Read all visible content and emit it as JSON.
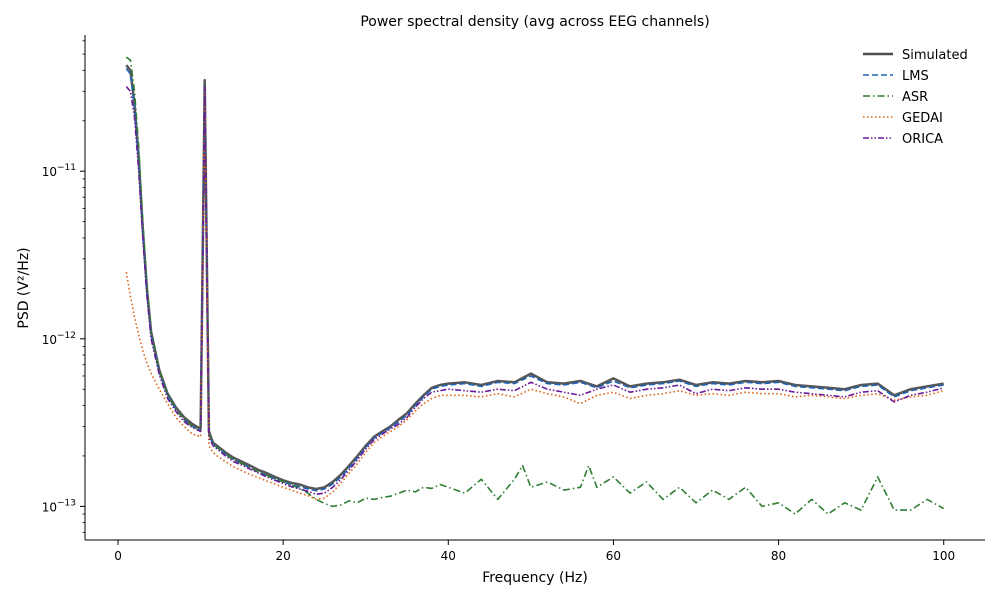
{
  "chart_data": {
    "type": "line",
    "title": "Power spectral density (avg across EEG channels)",
    "xlabel": "Frequency (Hz)",
    "ylabel": "PSD  (V²/Hz)",
    "xlim": [
      -4,
      105
    ],
    "ylim": [
      6.3e-14,
      6.5e-11
    ],
    "yscale": "log",
    "xticks": [
      0,
      20,
      40,
      60,
      80,
      100
    ],
    "xtick_labels": [
      "0",
      "20",
      "40",
      "60",
      "80",
      "100"
    ],
    "yticks": [
      1e-13,
      1e-12,
      1e-11
    ],
    "ytick_labels": [
      {
        "base": "10",
        "exp": "−13"
      },
      {
        "base": "10",
        "exp": "−12"
      },
      {
        "base": "10",
        "exp": "−11"
      }
    ],
    "grid": false,
    "legend_position": "top-right",
    "series": [
      {
        "name": "Simulated",
        "color": "#4d4d4d",
        "style": "solid",
        "x": [
          1,
          1.5,
          2,
          2.5,
          3,
          3.5,
          4,
          5,
          6,
          7,
          8,
          9,
          10,
          10.3,
          10.5,
          10.7,
          11,
          11.5,
          12,
          13,
          14,
          15,
          16,
          17,
          18,
          19,
          20,
          21,
          22,
          23,
          24,
          25,
          26,
          27,
          28,
          29,
          30,
          31,
          32,
          33,
          34,
          35,
          36,
          37,
          38,
          39,
          40,
          42,
          44,
          46,
          48,
          50,
          52,
          54,
          56,
          58,
          60,
          62,
          64,
          66,
          68,
          70,
          72,
          74,
          76,
          78,
          80,
          82,
          84,
          86,
          88,
          90,
          92,
          94,
          96,
          98,
          100
        ],
        "y": [
          4.3e-11,
          4e-11,
          2.5e-11,
          1.2e-11,
          4.5e-12,
          2e-12,
          1.1e-12,
          6.5e-13,
          4.7e-13,
          3.9e-13,
          3.4e-13,
          3.1e-13,
          2.9e-13,
          5e-12,
          3.5e-11,
          5e-12,
          2.8e-13,
          2.4e-13,
          2.3e-13,
          2.1e-13,
          1.95e-13,
          1.85e-13,
          1.75e-13,
          1.65e-13,
          1.58e-13,
          1.5e-13,
          1.43e-13,
          1.38e-13,
          1.35e-13,
          1.3e-13,
          1.27e-13,
          1.3e-13,
          1.4e-13,
          1.55e-13,
          1.75e-13,
          2e-13,
          2.3e-13,
          2.6e-13,
          2.8e-13,
          3e-13,
          3.3e-13,
          3.6e-13,
          4.1e-13,
          4.6e-13,
          5.1e-13,
          5.3e-13,
          5.4e-13,
          5.5e-13,
          5.3e-13,
          5.6e-13,
          5.5e-13,
          6.2e-13,
          5.5e-13,
          5.4e-13,
          5.6e-13,
          5.2e-13,
          5.8e-13,
          5.2e-13,
          5.4e-13,
          5.5e-13,
          5.7e-13,
          5.3e-13,
          5.5e-13,
          5.4e-13,
          5.6e-13,
          5.5e-13,
          5.6e-13,
          5.3e-13,
          5.2e-13,
          5.1e-13,
          5e-13,
          5.3e-13,
          5.4e-13,
          4.6e-13,
          5e-13,
          5.2e-13,
          5.4e-13
        ]
      },
      {
        "name": "LMS",
        "color": "#1f63b5",
        "style": "dashed",
        "x": [
          1,
          1.5,
          2,
          2.5,
          3,
          3.5,
          4,
          5,
          6,
          7,
          8,
          9,
          10,
          10.3,
          10.5,
          10.7,
          11,
          11.5,
          12,
          13,
          14,
          15,
          16,
          17,
          18,
          19,
          20,
          21,
          22,
          23,
          24,
          25,
          26,
          27,
          28,
          29,
          30,
          31,
          32,
          33,
          34,
          35,
          36,
          37,
          38,
          39,
          40,
          42,
          44,
          46,
          48,
          50,
          52,
          54,
          56,
          58,
          60,
          62,
          64,
          66,
          68,
          70,
          72,
          74,
          76,
          78,
          80,
          82,
          84,
          86,
          88,
          90,
          92,
          94,
          96,
          98,
          100
        ],
        "y": [
          4.1e-11,
          3.8e-11,
          2.4e-11,
          1.15e-11,
          4.3e-12,
          1.9e-12,
          1.05e-12,
          6.3e-13,
          4.6e-13,
          3.8e-13,
          3.3e-13,
          3e-13,
          2.85e-13,
          4.8e-12,
          3.3e-11,
          4.8e-12,
          2.7e-13,
          2.35e-13,
          2.25e-13,
          2.05e-13,
          1.9e-13,
          1.8e-13,
          1.7e-13,
          1.6e-13,
          1.53e-13,
          1.46e-13,
          1.4e-13,
          1.35e-13,
          1.31e-13,
          1.27e-13,
          1.24e-13,
          1.27e-13,
          1.36e-13,
          1.5e-13,
          1.7e-13,
          1.95e-13,
          2.25e-13,
          2.55e-13,
          2.75e-13,
          2.95e-13,
          3.2e-13,
          3.5e-13,
          4e-13,
          4.5e-13,
          5e-13,
          5.2e-13,
          5.3e-13,
          5.4e-13,
          5.2e-13,
          5.5e-13,
          5.4e-13,
          6e-13,
          5.4e-13,
          5.3e-13,
          5.5e-13,
          5.1e-13,
          5.6e-13,
          5.1e-13,
          5.3e-13,
          5.4e-13,
          5.6e-13,
          5.2e-13,
          5.4e-13,
          5.3e-13,
          5.5e-13,
          5.4e-13,
          5.5e-13,
          5.2e-13,
          5.1e-13,
          5e-13,
          4.9e-13,
          5.2e-13,
          5.3e-13,
          4.5e-13,
          4.9e-13,
          5.1e-13,
          5.3e-13
        ]
      },
      {
        "name": "ASR",
        "color": "#2e7d32",
        "style": "dashdot",
        "x": [
          1,
          1.5,
          2,
          2.5,
          3,
          3.5,
          4,
          5,
          6,
          7,
          8,
          9,
          10,
          10.3,
          10.5,
          10.7,
          11,
          11.5,
          12,
          13,
          14,
          15,
          16,
          17,
          18,
          19,
          20,
          21,
          22,
          23,
          24,
          25,
          26,
          27,
          28,
          29,
          30,
          31,
          32,
          33,
          34,
          35,
          36,
          37,
          38,
          39,
          40,
          42,
          44,
          46,
          48,
          49,
          50,
          52,
          54,
          56,
          57,
          58,
          60,
          62,
          64,
          66,
          68,
          70,
          72,
          74,
          76,
          78,
          80,
          82,
          84,
          86,
          88,
          90,
          92,
          94,
          96,
          98,
          100
        ],
        "y": [
          4.8e-11,
          4.6e-11,
          3e-11,
          1.4e-11,
          5e-12,
          2.1e-12,
          1.1e-12,
          6.4e-13,
          4.6e-13,
          3.8e-13,
          3.3e-13,
          3e-13,
          2.85e-13,
          4.8e-12,
          3.3e-11,
          4.8e-12,
          2.7e-13,
          2.35e-13,
          2.25e-13,
          2.05e-13,
          1.9e-13,
          1.8e-13,
          1.7e-13,
          1.6e-13,
          1.53e-13,
          1.46e-13,
          1.4e-13,
          1.34e-13,
          1.28e-13,
          1.2e-13,
          1.1e-13,
          1.04e-13,
          1e-13,
          1.02e-13,
          1.08e-13,
          1.05e-13,
          1.12e-13,
          1.1e-13,
          1.13e-13,
          1.15e-13,
          1.2e-13,
          1.25e-13,
          1.22e-13,
          1.3e-13,
          1.28e-13,
          1.35e-13,
          1.3e-13,
          1.2e-13,
          1.45e-13,
          1.1e-13,
          1.45e-13,
          1.75e-13,
          1.3e-13,
          1.4e-13,
          1.25e-13,
          1.3e-13,
          1.75e-13,
          1.3e-13,
          1.5e-13,
          1.2e-13,
          1.4e-13,
          1.1e-13,
          1.3e-13,
          1.05e-13,
          1.25e-13,
          1.1e-13,
          1.3e-13,
          1e-13,
          1.05e-13,
          9e-14,
          1.1e-13,
          9e-14,
          1.05e-13,
          9.5e-14,
          1.5e-13,
          9.5e-14,
          9.5e-14,
          1.1e-13,
          9.7e-14
        ]
      },
      {
        "name": "GEDAI",
        "color": "#e06010",
        "style": "dotted",
        "x": [
          1,
          1.5,
          2,
          2.5,
          3,
          3.5,
          4,
          5,
          6,
          7,
          8,
          9,
          10,
          10.3,
          10.5,
          10.7,
          11,
          11.5,
          12,
          13,
          14,
          15,
          16,
          17,
          18,
          19,
          20,
          21,
          22,
          23,
          24,
          25,
          26,
          27,
          28,
          29,
          30,
          31,
          32,
          33,
          34,
          35,
          36,
          37,
          38,
          39,
          40,
          42,
          44,
          46,
          48,
          50,
          52,
          54,
          56,
          58,
          60,
          62,
          64,
          66,
          68,
          70,
          72,
          74,
          76,
          78,
          80,
          82,
          84,
          86,
          88,
          90,
          92,
          94,
          96,
          98,
          100
        ],
        "y": [
          2.5e-12,
          1.8e-12,
          1.35e-12,
          1.05e-12,
          8.5e-13,
          7.2e-13,
          6.2e-13,
          5e-13,
          4.1e-13,
          3.4e-13,
          3e-13,
          2.7e-13,
          2.6e-13,
          4e-12,
          3e-11,
          4e-12,
          2.3e-13,
          2.1e-13,
          2e-13,
          1.85e-13,
          1.72e-13,
          1.63e-13,
          1.55e-13,
          1.48e-13,
          1.42e-13,
          1.36e-13,
          1.3e-13,
          1.25e-13,
          1.2e-13,
          1.16e-13,
          1.1e-13,
          1.12e-13,
          1.22e-13,
          1.38e-13,
          1.58e-13,
          1.8e-13,
          2.1e-13,
          2.4e-13,
          2.6e-13,
          2.8e-13,
          3e-13,
          3.3e-13,
          3.7e-13,
          4.1e-13,
          4.4e-13,
          4.6e-13,
          4.6e-13,
          4.6e-13,
          4.5e-13,
          4.7e-13,
          4.5e-13,
          5e-13,
          4.7e-13,
          4.5e-13,
          4.1e-13,
          4.6e-13,
          4.8e-13,
          4.4e-13,
          4.6e-13,
          4.7e-13,
          4.9e-13,
          4.6e-13,
          4.7e-13,
          4.6e-13,
          4.8e-13,
          4.7e-13,
          4.7e-13,
          4.5e-13,
          4.6e-13,
          4.5e-13,
          4.4e-13,
          4.6e-13,
          4.7e-13,
          4.3e-13,
          4.5e-13,
          4.6e-13,
          4.9e-13
        ]
      },
      {
        "name": "ORICA",
        "color": "#6a1b9a",
        "style": "dashdotdot",
        "x": [
          1,
          1.5,
          2,
          2.5,
          3,
          3.5,
          4,
          5,
          6,
          7,
          8,
          9,
          10,
          10.3,
          10.5,
          10.7,
          11,
          11.5,
          12,
          13,
          14,
          15,
          16,
          17,
          18,
          19,
          20,
          21,
          22,
          23,
          24,
          25,
          26,
          27,
          28,
          29,
          30,
          31,
          32,
          33,
          34,
          35,
          36,
          37,
          38,
          39,
          40,
          42,
          44,
          46,
          48,
          50,
          52,
          54,
          56,
          58,
          60,
          62,
          64,
          66,
          68,
          70,
          72,
          74,
          76,
          78,
          80,
          82,
          84,
          86,
          88,
          90,
          92,
          94,
          96,
          98,
          100
        ],
        "y": [
          3.2e-11,
          3e-11,
          2.1e-11,
          1e-11,
          4e-12,
          1.8e-12,
          1e-12,
          6.1e-13,
          4.4e-13,
          3.7e-13,
          3.2e-13,
          2.95e-13,
          2.8e-13,
          4.6e-12,
          3.2e-11,
          4.6e-12,
          2.6e-13,
          2.3e-13,
          2.2e-13,
          2e-13,
          1.85e-13,
          1.76e-13,
          1.67e-13,
          1.58e-13,
          1.5e-13,
          1.43e-13,
          1.37e-13,
          1.31e-13,
          1.27e-13,
          1.23e-13,
          1.18e-13,
          1.2e-13,
          1.3e-13,
          1.45e-13,
          1.65e-13,
          1.9e-13,
          2.2e-13,
          2.5e-13,
          2.7e-13,
          2.9e-13,
          3.1e-13,
          3.4e-13,
          3.9e-13,
          4.4e-13,
          4.8e-13,
          4.9e-13,
          5e-13,
          4.9e-13,
          4.8e-13,
          5e-13,
          4.9e-13,
          5.5e-13,
          5e-13,
          4.8e-13,
          4.6e-13,
          5e-13,
          5.3e-13,
          4.8e-13,
          5e-13,
          5.1e-13,
          5.3e-13,
          4.7e-13,
          5e-13,
          4.9e-13,
          5.1e-13,
          5e-13,
          5e-13,
          4.8e-13,
          4.7e-13,
          4.6e-13,
          4.5e-13,
          4.8e-13,
          4.9e-13,
          4.2e-13,
          4.6e-13,
          4.8e-13,
          5.1e-13
        ]
      }
    ]
  }
}
